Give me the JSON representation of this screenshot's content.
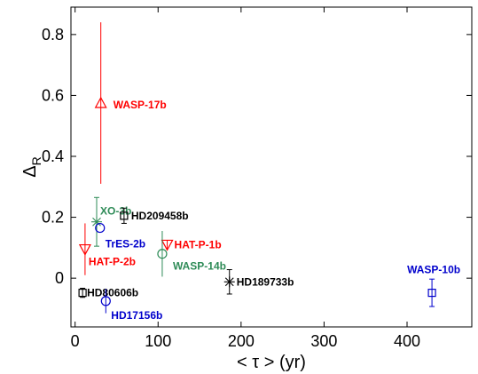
{
  "chart_data": {
    "type": "scatter",
    "title": "",
    "xlabel": "< τ >   (yr)",
    "ylabel": "Δ",
    "ylabel_sub": "R",
    "xlim": [
      -5,
      478
    ],
    "ylim": [
      -0.16,
      0.89
    ],
    "xticks": [
      0,
      100,
      200,
      300,
      400
    ],
    "yticks": [
      0,
      0.2,
      0.4,
      0.6,
      0.8
    ],
    "ytick_labels": [
      "0",
      "0.2",
      "0.4",
      "0.6",
      "0.8"
    ],
    "grid": false,
    "points": [
      {
        "name": "WASP-17b",
        "x": 31,
        "y": 0.575,
        "err_low": 0.265,
        "err_high": 0.265,
        "marker": "triangle-up",
        "color": "#ff0000"
      },
      {
        "name": "XO-3b",
        "x": 26,
        "y": 0.185,
        "err_low": 0.08,
        "err_high": 0.08,
        "marker": "star",
        "color": "#2e8b57"
      },
      {
        "name": "HD209458b",
        "x": 59,
        "y": 0.205,
        "err_low": 0.025,
        "err_high": 0.025,
        "marker": "square",
        "color": "#000000"
      },
      {
        "name": "TrES-2b",
        "x": 30,
        "y": 0.165,
        "err_low": 0.0,
        "err_high": 0.0,
        "marker": "circle",
        "color": "#0000cc"
      },
      {
        "name": "HAT-P-2b",
        "x": 12,
        "y": 0.095,
        "err_low": 0.085,
        "err_high": 0.085,
        "marker": "triangle-down",
        "color": "#ff0000"
      },
      {
        "name": "HAT-P-1b",
        "x": 111,
        "y": 0.11,
        "err_low": 0.015,
        "err_high": 0.015,
        "marker": "triangle-down",
        "color": "#ff0000"
      },
      {
        "name": "WASP-14b",
        "x": 105,
        "y": 0.08,
        "err_low": 0.075,
        "err_high": 0.075,
        "marker": "circle",
        "color": "#2e8b57"
      },
      {
        "name": "HD189733b",
        "x": 186,
        "y": -0.012,
        "err_low": 0.04,
        "err_high": 0.04,
        "marker": "star",
        "color": "#000000"
      },
      {
        "name": "HD80606b",
        "x": 9,
        "y": -0.048,
        "err_low": 0.015,
        "err_high": 0.015,
        "marker": "square",
        "color": "#000000"
      },
      {
        "name": "HD17156b",
        "x": 37,
        "y": -0.075,
        "err_low": 0.04,
        "err_high": 0.04,
        "marker": "circle",
        "color": "#0000cc"
      },
      {
        "name": "WASP-10b",
        "x": 430,
        "y": -0.048,
        "err_low": 0.045,
        "err_high": 0.045,
        "marker": "square",
        "color": "#0000cc"
      }
    ]
  }
}
